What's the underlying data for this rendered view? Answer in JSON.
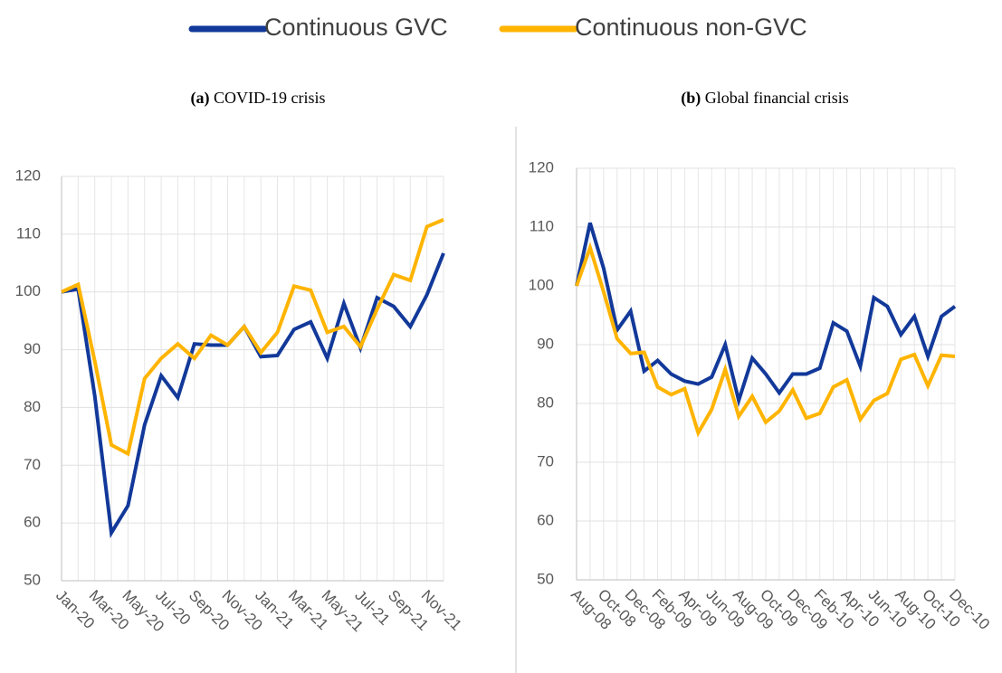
{
  "chart_data": [
    {
      "type": "line",
      "panel": "(a)",
      "title": "COVID-19 crisis",
      "legend": "top",
      "categories": [
        "Jan-20",
        null,
        "Mar-20",
        null,
        "May-20",
        null,
        "Jul-20",
        null,
        "Sep-20",
        null,
        "Nov-20",
        null,
        "Jan-21",
        null,
        "Mar-21",
        null,
        "May-21",
        null,
        "Jul-21",
        null,
        "Sep-21",
        null,
        "Nov-21",
        null
      ],
      "series": [
        {
          "name": "Continuous GVC",
          "color": "#12399a",
          "values": [
            100,
            100.5,
            82,
            58.3,
            63,
            77,
            85.5,
            81.7,
            91,
            90.8,
            90.8,
            94,
            88.8,
            89,
            93.5,
            94.8,
            88.5,
            98,
            90.3,
            99,
            97.5,
            94,
            99.5,
            106.7
          ]
        },
        {
          "name": "Continuous non-GVC",
          "color": "#ffb400",
          "values": [
            100,
            101.3,
            88,
            73.5,
            72,
            85,
            88.5,
            91,
            88.5,
            92.5,
            90.8,
            94,
            89.5,
            93,
            101,
            100.3,
            93,
            94,
            90.5,
            97,
            103,
            102,
            111.3,
            112.5
          ]
        }
      ],
      "ylim": [
        50,
        120
      ],
      "yticks": [
        50,
        60,
        70,
        80,
        90,
        100,
        110,
        120
      ],
      "grid": true
    },
    {
      "type": "line",
      "panel": "(b)",
      "title": "Global financial crisis",
      "categories": [
        "Aug-08",
        null,
        "Oct-08",
        null,
        "Dec-08",
        null,
        "Feb-09",
        null,
        "Apr-09",
        null,
        "Jun-09",
        null,
        "Aug-09",
        null,
        "Oct-09",
        null,
        "Dec-09",
        null,
        "Feb-10",
        null,
        "Apr-10",
        null,
        "Jun-10",
        null,
        "Aug-10",
        null,
        "Oct-10",
        null,
        "Dec-10"
      ],
      "series": [
        {
          "name": "Continuous GVC",
          "color": "#12399a",
          "values": [
            100,
            110.7,
            103,
            92.5,
            95.7,
            85.5,
            87.3,
            85,
            83.8,
            83.3,
            84.5,
            90,
            80.5,
            87.7,
            85,
            81.8,
            85,
            85,
            86,
            93.7,
            92.3,
            86.3,
            98,
            96.5,
            91.7,
            94.8,
            88,
            94.8,
            96.5
          ]
        },
        {
          "name": "Continuous non-GVC",
          "color": "#ffb400",
          "values": [
            100,
            106.5,
            99,
            91,
            88.5,
            88.7,
            82.8,
            81.5,
            82.5,
            75,
            79,
            85.8,
            77.8,
            81.2,
            76.8,
            78.7,
            82.3,
            77.5,
            78.3,
            82.8,
            84,
            77.3,
            80.5,
            81.7,
            87.5,
            88.3,
            83,
            88.2,
            88
          ]
        }
      ],
      "ylim": [
        50,
        120
      ],
      "yticks": [
        50,
        60,
        70,
        80,
        90,
        100,
        110,
        120
      ],
      "grid": true
    }
  ]
}
